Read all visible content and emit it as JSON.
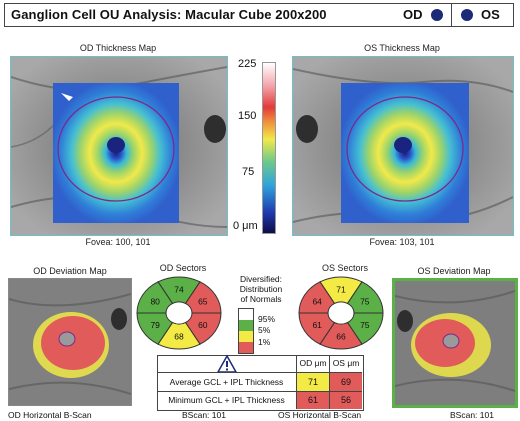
{
  "header": {
    "title": "Ganglion Cell OU Analysis: Macular Cube 200x200",
    "od_label": "OD",
    "os_label": "OS"
  },
  "od_map": {
    "title": "OD Thickness Map",
    "fovea": "Fovea: 100, 101"
  },
  "os_map": {
    "title": "OS Thickness Map",
    "fovea": "Fovea: 103, 101"
  },
  "scale": {
    "ticks": [
      "225",
      "150",
      "75",
      "0 μm"
    ]
  },
  "od_dev": {
    "title": "OD Deviation Map"
  },
  "os_dev": {
    "title": "OS Deviation Map"
  },
  "od_sectors": {
    "title": "OD Sectors",
    "values": [
      "74",
      "65",
      "60",
      "68",
      "79",
      "80"
    ]
  },
  "os_sectors": {
    "title": "OS Sectors",
    "values": [
      "71",
      "75",
      "75",
      "66",
      "61",
      "64"
    ]
  },
  "legend": {
    "title_lines": [
      "Diversified:",
      "Distribution",
      "of Normals"
    ],
    "levels": [
      "95%",
      "5%",
      "1%"
    ]
  },
  "table": {
    "col_od": "OD μm",
    "col_os": "OS μm",
    "rows": [
      {
        "label": "Average GCL + IPL Thickness",
        "od": "71",
        "os": "69"
      },
      {
        "label": "Minimum GCL + IPL Thickness",
        "od": "61",
        "os": "56"
      }
    ]
  },
  "bottom": {
    "od_bscan": "OD Horizontal B-Scan",
    "bscan_left": "BScan:   101",
    "os_bscan": "OS Horizontal B-Scan",
    "bscan_right": "BScan:   101"
  },
  "colors": {
    "green": "#5bb047",
    "yellow": "#f3ea45",
    "red": "#e25b5b",
    "navy": "#1c2a78",
    "teal": "#6fc0c8"
  }
}
